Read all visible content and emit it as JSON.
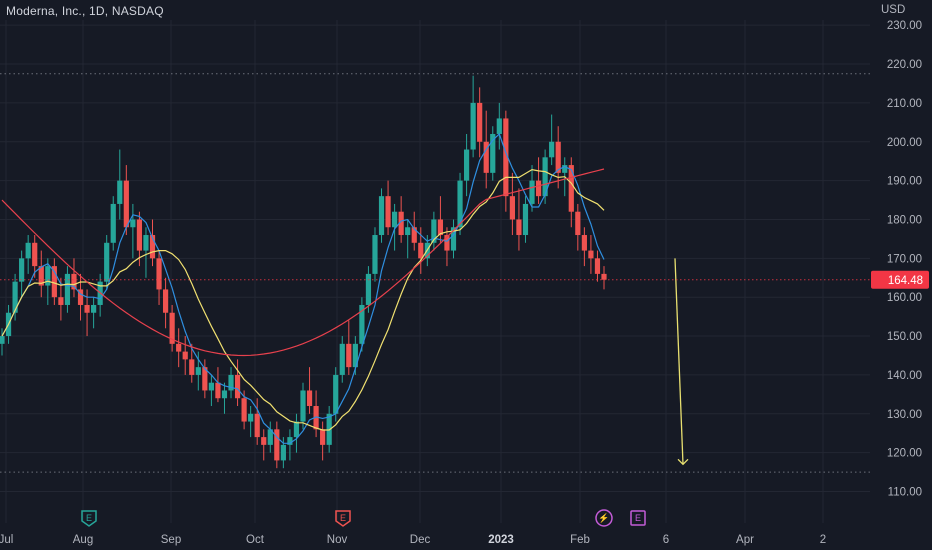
{
  "header": {
    "title": "Moderna, Inc., 1D, NASDAQ",
    "currency": "USD"
  },
  "colors": {
    "background": "#161a25",
    "up": "#26a69a",
    "down": "#ef5350",
    "ma_blue": "#2f8fe0",
    "ma_yellow": "#f0e070",
    "ma_red": "#e8414d",
    "arrow": "#e8e070",
    "last_price_tag": "#f23645",
    "dotted_level": "#6b6f7a"
  },
  "chart_data": {
    "type": "candlestick",
    "y_axis": {
      "range": [
        105,
        233
      ],
      "ticks": [
        110,
        120,
        130,
        140,
        150,
        160,
        170,
        180,
        190,
        200,
        210,
        220,
        230
      ],
      "tick_labels": [
        "110.00",
        "120.00",
        "130.00",
        "140.00",
        "150.00",
        "160.00",
        "170.00",
        "180.00",
        "190.00",
        "200.00",
        "210.00",
        "220.00",
        "230.00"
      ]
    },
    "x_axis": {
      "labels": [
        "Jul",
        "Aug",
        "Sep",
        "Oct",
        "Nov",
        "Dec",
        "2023",
        "Feb",
        "6",
        "Apr",
        "2"
      ],
      "bold_label": "2023"
    },
    "last_price": {
      "value": 164.48,
      "label": "164.48"
    },
    "horizontal_levels": [
      217.5,
      115
    ],
    "series": [
      {
        "name": "",
        "kind": "moving-average-short",
        "color": "blue"
      },
      {
        "name": "",
        "kind": "moving-average-medium",
        "color": "yellow"
      },
      {
        "name": "",
        "kind": "moving-average-long",
        "color": "red"
      }
    ],
    "candles": [
      [
        148,
        152,
        145,
        150
      ],
      [
        150,
        158,
        148,
        156
      ],
      [
        156,
        166,
        154,
        164
      ],
      [
        164,
        172,
        160,
        170
      ],
      [
        170,
        176,
        166,
        174
      ],
      [
        174,
        176,
        165,
        168
      ],
      [
        168,
        172,
        160,
        163
      ],
      [
        163,
        170,
        158,
        168
      ],
      [
        168,
        170,
        158,
        160
      ],
      [
        160,
        165,
        154,
        158
      ],
      [
        158,
        168,
        156,
        166
      ],
      [
        166,
        170,
        160,
        162
      ],
      [
        162,
        166,
        154,
        158
      ],
      [
        158,
        162,
        150,
        156
      ],
      [
        156,
        160,
        152,
        158
      ],
      [
        158,
        166,
        155,
        164
      ],
      [
        164,
        176,
        162,
        174
      ],
      [
        174,
        186,
        172,
        184
      ],
      [
        184,
        198,
        180,
        190
      ],
      [
        190,
        194,
        176,
        178
      ],
      [
        178,
        184,
        170,
        180
      ],
      [
        180,
        182,
        168,
        172
      ],
      [
        172,
        178,
        165,
        176
      ],
      [
        176,
        180,
        168,
        170
      ],
      [
        170,
        172,
        158,
        162
      ],
      [
        162,
        165,
        152,
        156
      ],
      [
        156,
        158,
        146,
        148
      ],
      [
        148,
        152,
        142,
        146
      ],
      [
        146,
        150,
        140,
        144
      ],
      [
        144,
        148,
        138,
        140
      ],
      [
        140,
        146,
        136,
        142
      ],
      [
        142,
        144,
        134,
        136
      ],
      [
        136,
        140,
        132,
        138
      ],
      [
        138,
        142,
        133,
        134
      ],
      [
        134,
        138,
        130,
        136
      ],
      [
        136,
        142,
        134,
        140
      ],
      [
        140,
        144,
        132,
        134
      ],
      [
        134,
        136,
        126,
        128
      ],
      [
        128,
        132,
        124,
        130
      ],
      [
        130,
        134,
        122,
        124
      ],
      [
        124,
        126,
        118,
        122
      ],
      [
        122,
        128,
        120,
        126
      ],
      [
        126,
        128,
        116,
        118
      ],
      [
        118,
        124,
        116,
        122
      ],
      [
        122,
        126,
        118,
        124
      ],
      [
        124,
        130,
        120,
        128
      ],
      [
        128,
        138,
        126,
        136
      ],
      [
        136,
        142,
        130,
        132
      ],
      [
        132,
        136,
        124,
        126
      ],
      [
        126,
        128,
        118,
        122
      ],
      [
        122,
        132,
        120,
        130
      ],
      [
        130,
        142,
        128,
        140
      ],
      [
        140,
        150,
        138,
        148
      ],
      [
        148,
        154,
        140,
        142
      ],
      [
        142,
        150,
        140,
        148
      ],
      [
        148,
        160,
        146,
        158
      ],
      [
        158,
        168,
        156,
        166
      ],
      [
        166,
        178,
        164,
        176
      ],
      [
        176,
        188,
        174,
        186
      ],
      [
        186,
        190,
        176,
        178
      ],
      [
        178,
        184,
        172,
        182
      ],
      [
        182,
        186,
        174,
        176
      ],
      [
        176,
        180,
        170,
        178
      ],
      [
        178,
        182,
        172,
        174
      ],
      [
        174,
        178,
        166,
        170
      ],
      [
        170,
        176,
        168,
        174
      ],
      [
        174,
        182,
        172,
        180
      ],
      [
        180,
        186,
        174,
        176
      ],
      [
        176,
        178,
        168,
        172
      ],
      [
        172,
        180,
        170,
        178
      ],
      [
        178,
        192,
        176,
        190
      ],
      [
        190,
        202,
        186,
        198
      ],
      [
        198,
        217,
        196,
        210
      ],
      [
        210,
        214,
        196,
        200
      ],
      [
        200,
        208,
        188,
        192
      ],
      [
        192,
        204,
        190,
        202
      ],
      [
        202,
        210,
        198,
        206
      ],
      [
        206,
        208,
        182,
        186
      ],
      [
        186,
        192,
        176,
        180
      ],
      [
        180,
        188,
        172,
        176
      ],
      [
        176,
        186,
        174,
        184
      ],
      [
        184,
        194,
        182,
        190
      ],
      [
        190,
        196,
        184,
        186
      ],
      [
        186,
        198,
        184,
        196
      ],
      [
        196,
        207,
        194,
        200
      ],
      [
        200,
        204,
        188,
        192
      ],
      [
        192,
        196,
        186,
        194
      ],
      [
        194,
        196,
        178,
        182
      ],
      [
        182,
        184,
        172,
        176
      ],
      [
        176,
        178,
        168,
        172
      ],
      [
        172,
        176,
        166,
        170
      ],
      [
        170,
        172,
        164,
        166
      ],
      [
        166,
        168,
        162,
        164.5
      ]
    ],
    "annotations": [
      {
        "type": "arrow",
        "direction": "down",
        "from": 170,
        "to": 117
      }
    ]
  },
  "events": [
    {
      "label": "E",
      "kind": "earnings-reported"
    },
    {
      "label": "E",
      "kind": "earnings-missed"
    },
    {
      "label": "⚡",
      "kind": "dividend-split"
    },
    {
      "label": "E",
      "kind": "earnings-upcoming"
    }
  ]
}
